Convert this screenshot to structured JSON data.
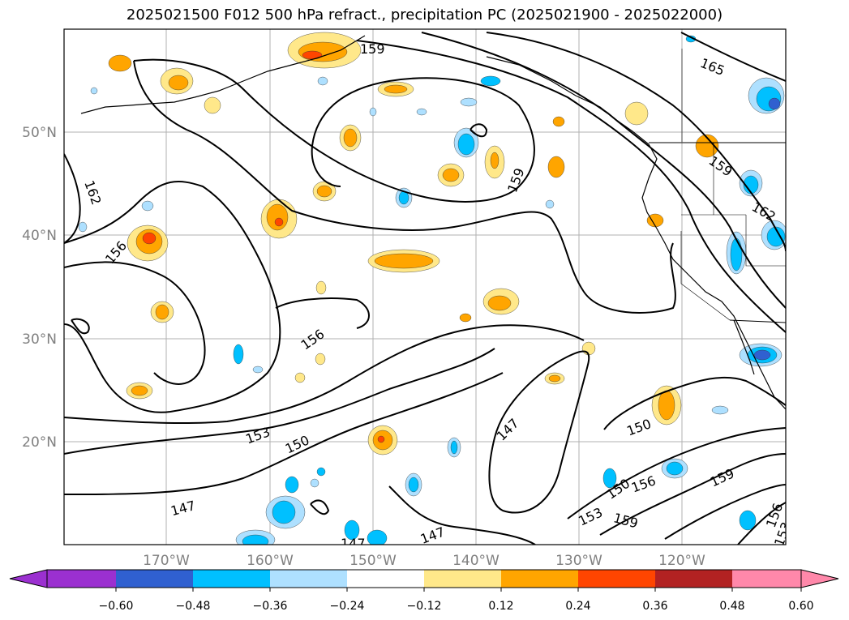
{
  "title": "2025021500 F012 500 hPa refract., precipitation PC (2025021900 - 2025022000)",
  "latitude_labels": [
    "50°N",
    "40°N",
    "30°N",
    "20°N"
  ],
  "longitude_labels": [
    "170°W",
    "160°W",
    "150°W",
    "140°W",
    "130°W",
    "120°W"
  ],
  "colorbar": {
    "ticks": [
      "−0.60",
      "−0.48",
      "−0.36",
      "−0.24",
      "−0.12",
      "0.12",
      "0.24",
      "0.36",
      "0.48",
      "0.60"
    ],
    "colors": [
      "#9b30d0",
      "#000090",
      "#3060d0",
      "#00c0ff",
      "#aee0ff",
      "#ffffff",
      "#ffe88a",
      "#ffa500",
      "#ff4500",
      "#b22222",
      "#ff88aa"
    ]
  },
  "contour_labels": [
    "165",
    "159",
    "162",
    "156",
    "156",
    "159",
    "159",
    "153",
    "150",
    "147",
    "147",
    "150",
    "150",
    "156",
    "159",
    "153",
    "159",
    "156",
    "153",
    "147",
    "147",
    "162"
  ],
  "colors": {
    "contour": "#000000",
    "coast": "#000000",
    "grid": "#b0b0b0",
    "pos_light": "#ffe88a",
    "pos_mid": "#ffa500",
    "pos_strong": "#ff4500",
    "neg_light": "#aee0ff",
    "neg_mid": "#00c0ff",
    "neg_strong": "#3060d0"
  }
}
